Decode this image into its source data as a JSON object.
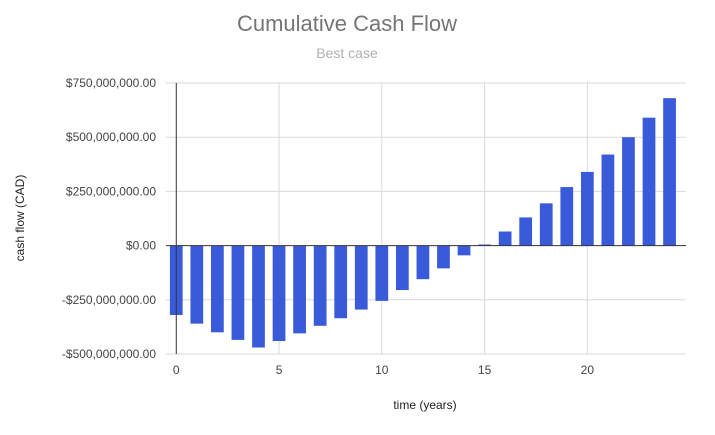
{
  "chart_data": {
    "type": "bar",
    "title": "Cumulative Cash Flow",
    "subtitle": "Best case",
    "xlabel": "time (years)",
    "ylabel": "cash flow (CAD)",
    "x": [
      0,
      1,
      2,
      3,
      4,
      5,
      6,
      7,
      8,
      9,
      10,
      11,
      12,
      13,
      14,
      15,
      16,
      17,
      18,
      19,
      20,
      21,
      22,
      23,
      24
    ],
    "values": [
      -320000000,
      -360000000,
      -400000000,
      -435000000,
      -470000000,
      -440000000,
      -405000000,
      -370000000,
      -335000000,
      -295000000,
      -255000000,
      -205000000,
      -155000000,
      -105000000,
      -45000000,
      5000000,
      65000000,
      130000000,
      195000000,
      270000000,
      340000000,
      420000000,
      500000000,
      590000000,
      680000000
    ],
    "xlim": [
      -0.5,
      24.8
    ],
    "ylim": [
      -500000000,
      750000000
    ],
    "xticks": [
      0,
      5,
      10,
      15,
      20
    ],
    "xtick_labels": [
      "0",
      "5",
      "10",
      "15",
      "20"
    ],
    "yticks": [
      -500000000,
      -250000000,
      0,
      250000000,
      500000000,
      750000000
    ],
    "ytick_labels": [
      "-$500,000,000.00",
      "-$250,000,000.00",
      "$0.00",
      "$250,000,000.00",
      "$500,000,000.00",
      "$750,000,000.00"
    ],
    "bar_color": "#3a5bd9",
    "grid": true,
    "legend": "none"
  }
}
